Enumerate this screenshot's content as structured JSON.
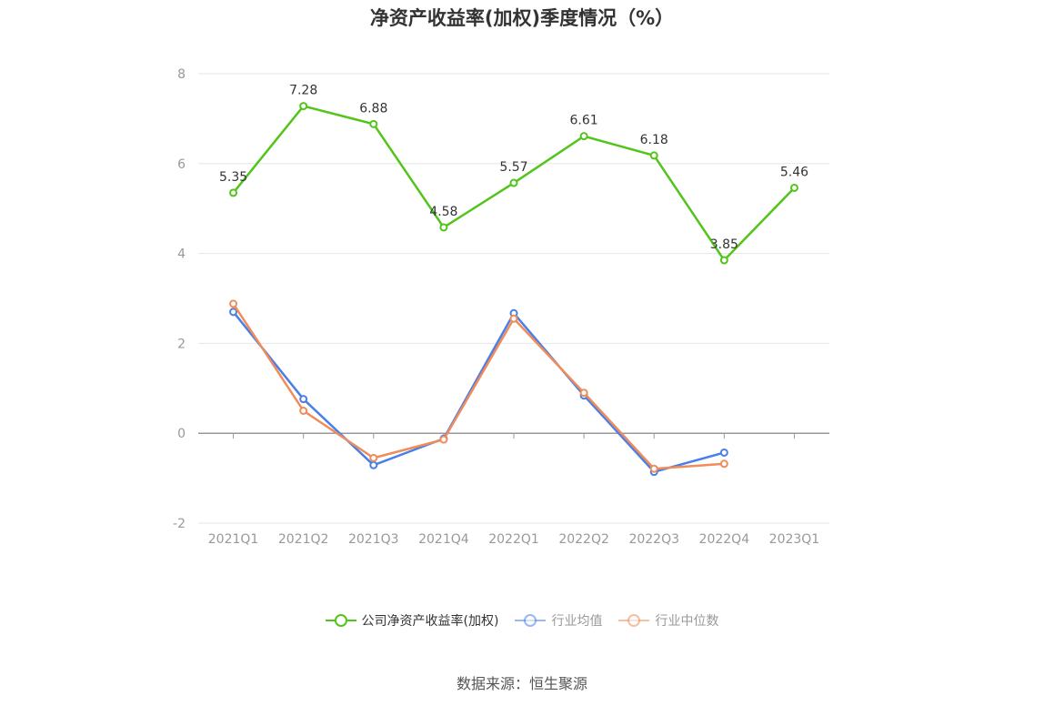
{
  "chart_data": {
    "type": "line",
    "title": "净资产收益率(加权)季度情况（%）",
    "source": "数据来源：恒生聚源",
    "categories": [
      "2021Q1",
      "2021Q2",
      "2021Q3",
      "2021Q4",
      "2022Q1",
      "2022Q2",
      "2022Q3",
      "2022Q4",
      "2023Q1"
    ],
    "ylim": [
      -2,
      8
    ],
    "yticks": [
      "8",
      "6",
      "4",
      "2",
      "0",
      "-2"
    ],
    "grid": true,
    "legend_position": "bottom",
    "series": [
      {
        "name": "公司净资产收益率(加权)",
        "color": "#52c41a",
        "values": [
          5.35,
          7.28,
          6.88,
          4.58,
          5.57,
          6.61,
          6.18,
          3.85,
          5.46
        ],
        "labels": [
          "5.35",
          "7.28",
          "6.88",
          "4.58",
          "5.57",
          "6.61",
          "6.18",
          "3.85",
          "5.46"
        ]
      },
      {
        "name": "行业均值",
        "color": "#4a7ee8",
        "values": [
          2.7,
          0.76,
          -0.71,
          -0.12,
          2.67,
          0.84,
          -0.86,
          -0.43,
          null
        ]
      },
      {
        "name": "行业中位数",
        "color": "#f08c5a",
        "values": [
          2.88,
          0.5,
          -0.55,
          -0.14,
          2.55,
          0.9,
          -0.79,
          -0.68,
          null
        ]
      }
    ]
  }
}
